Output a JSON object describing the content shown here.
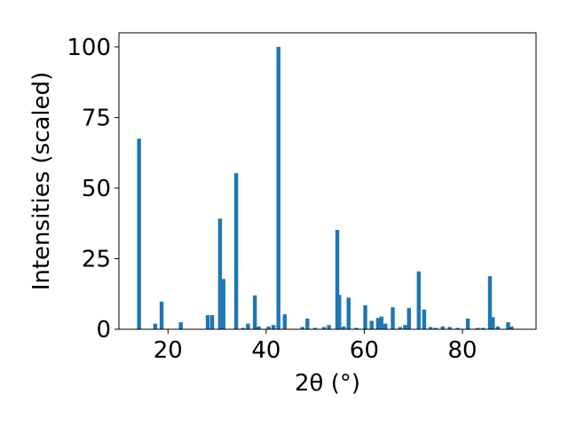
{
  "chart_data": {
    "type": "bar",
    "xlabel": "2θ (°)",
    "ylabel": "Intensities (scaled)",
    "xlim": [
      10,
      95
    ],
    "ylim": [
      0,
      105
    ],
    "xticks": [
      "20",
      "40",
      "60",
      "80"
    ],
    "yticks": [
      "0",
      "25",
      "50",
      "75",
      "100"
    ],
    "bar_color": "#1f77b4",
    "bar_width": 0.8,
    "grid": false,
    "x": [
      14.1,
      17.4,
      18.7,
      22.6,
      28.1,
      29.0,
      30.6,
      31.3,
      33.9,
      35.3,
      36.3,
      37.7,
      38.5,
      40.5,
      41.5,
      42.5,
      43.8,
      47.4,
      48.4,
      50.0,
      51.8,
      52.8,
      54.5,
      54.9,
      55.8,
      56.8,
      58.4,
      60.2,
      61.5,
      62.8,
      63.5,
      64.3,
      65.8,
      67.3,
      68.3,
      69.1,
      71.1,
      72.2,
      73.5,
      74.5,
      76.0,
      77.4,
      79.0,
      81.1,
      83.1,
      84.2,
      85.6,
      86.2,
      87.2,
      89.3,
      90.0
    ],
    "values": [
      67.5,
      2.0,
      9.8,
      2.5,
      5.0,
      5.0,
      39.2,
      17.8,
      55.3,
      0.5,
      2.0,
      12.0,
      1.0,
      1.0,
      1.5,
      100.0,
      5.3,
      0.8,
      3.8,
      0.5,
      0.8,
      1.5,
      35.2,
      12.2,
      1.0,
      11.2,
      0.5,
      8.5,
      3.0,
      4.0,
      4.5,
      2.0,
      7.8,
      0.8,
      1.5,
      7.5,
      20.5,
      7.0,
      0.8,
      0.5,
      1.0,
      0.8,
      0.5,
      3.8,
      0.5,
      0.5,
      18.8,
      4.3,
      1.0,
      2.5,
      1.0
    ]
  }
}
